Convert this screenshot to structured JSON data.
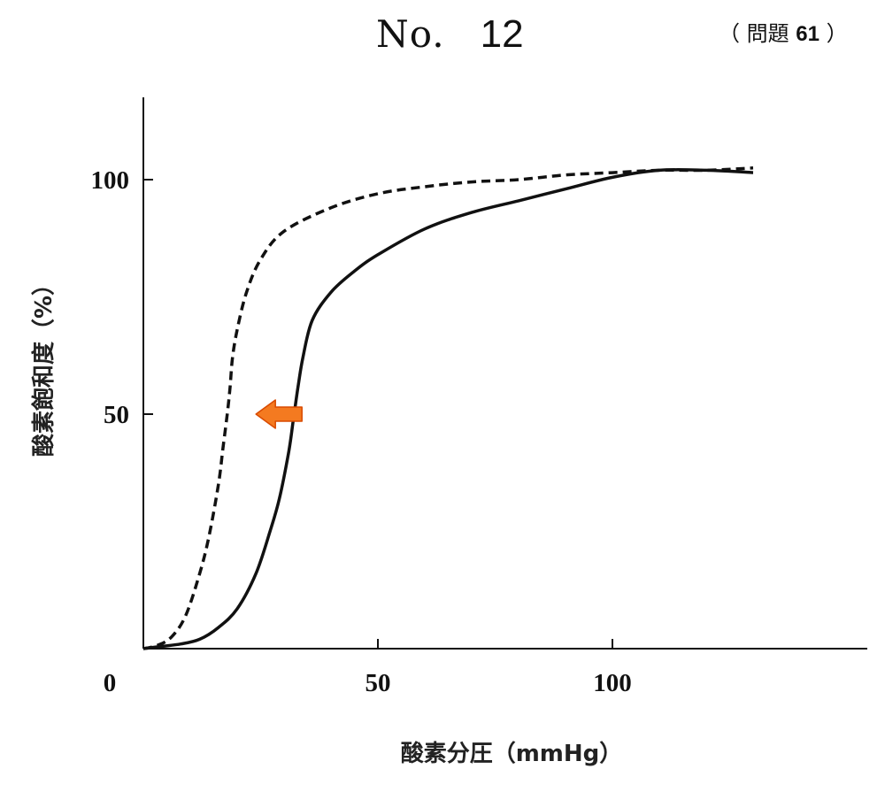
{
  "header": {
    "no_label": "No.",
    "no_number": "12",
    "question_open": "（ 問題 ",
    "question_number": "61",
    "question_close": " ）"
  },
  "chart_data": {
    "type": "line",
    "title": "",
    "xlabel": "酸素分圧（mmHg）",
    "ylabel": "酸素飽和度（%）",
    "xlim": [
      0,
      150
    ],
    "ylim": [
      0,
      115
    ],
    "x_ticks": [
      50,
      100
    ],
    "x_tick_labels": [
      "50",
      "100"
    ],
    "y_ticks": [
      50,
      100
    ],
    "y_tick_labels": [
      "50",
      "100"
    ],
    "origin_label": "0",
    "grid": false,
    "legend": "none",
    "series": [
      {
        "style": "dashed",
        "color": "#111111",
        "x": [
          0,
          3,
          6,
          9,
          12,
          14,
          16,
          17,
          18,
          18.5,
          19,
          20,
          22,
          25,
          30,
          40,
          50,
          60,
          70,
          80,
          90,
          100,
          110,
          120,
          130
        ],
        "y": [
          0,
          0.7,
          2.5,
          7,
          16,
          24,
          35,
          43,
          51,
          56,
          62,
          68,
          76,
          83,
          89,
          94,
          97,
          98.5,
          99.5,
          100,
          101,
          101.5,
          102,
          102,
          102.5
        ]
      },
      {
        "style": "solid",
        "color": "#111111",
        "x": [
          0,
          4,
          8,
          12,
          16,
          20,
          24,
          27,
          29,
          31,
          32,
          33,
          34,
          36,
          40,
          45,
          50,
          60,
          70,
          80,
          90,
          100,
          110,
          120,
          130
        ],
        "y": [
          0,
          0.5,
          1,
          2,
          4.5,
          8.5,
          16,
          25,
          32,
          42,
          49,
          56,
          62,
          70,
          76,
          80.5,
          84,
          89.5,
          93,
          95.5,
          98,
          100.5,
          102,
          102,
          101.5
        ]
      }
    ],
    "annotations": [
      {
        "type": "arrow",
        "direction": "left",
        "color": "#f47a20",
        "x": 24,
        "y": 50
      }
    ]
  }
}
